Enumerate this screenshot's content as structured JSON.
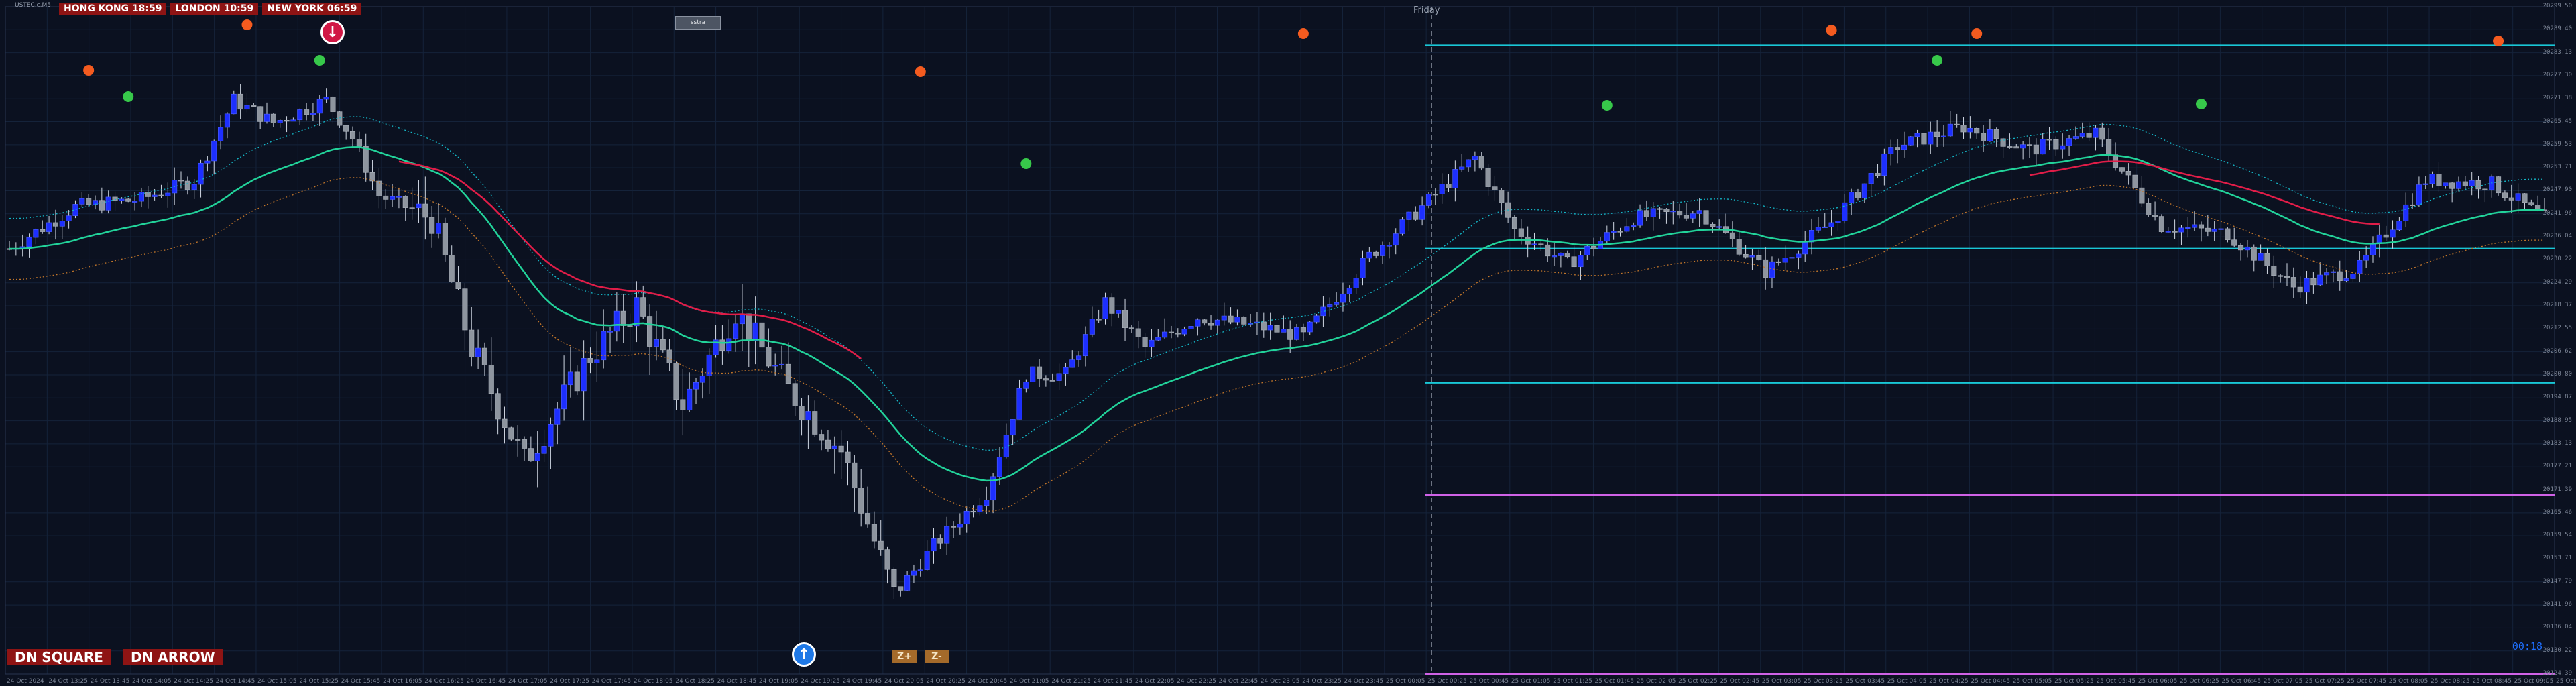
{
  "window": {
    "symbol_title": "USTEC,c,M5"
  },
  "sessions": [
    {
      "label": "HONG KONG 18:59"
    },
    {
      "label": "LONDON  10:59"
    },
    {
      "label": "NEW YORK  06:59"
    }
  ],
  "session_button": "sstra",
  "day_label": "Friday",
  "buttons": {
    "dn_square": "DN SQUARE",
    "dn_arrow": "DN ARROW",
    "zoom_in": "Z+",
    "zoom_out": "Z-"
  },
  "countdown": "00:18",
  "colors": {
    "background": "#0b1120",
    "grid": "#15233a",
    "bull_candle": "#1d2fff",
    "bear_candle": "#8e959f",
    "ma_fast": "#e11d48",
    "ma_mid": "#22d39a",
    "band_upper": "#14b8c8",
    "band_lower": "#c2762a",
    "level_cyan": "#19c7d6",
    "level_magenta": "#d062e6",
    "dot_top": "#f45b1f",
    "dot_bottom": "#37c84a",
    "session_red": "#8e1414"
  },
  "price_axis": [
    "20299.50",
    "20289.40",
    "20283.13",
    "20277.30",
    "20271.38",
    "20265.45",
    "20259.53",
    "20253.71",
    "20247.90",
    "20241.96",
    "20236.04",
    "20230.22",
    "20224.29",
    "20218.37",
    "20212.55",
    "20206.62",
    "20200.80",
    "20194.87",
    "20188.95",
    "20183.13",
    "20177.21",
    "20171.39",
    "20165.46",
    "20159.54",
    "20153.71",
    "20147.79",
    "20141.96",
    "20136.04",
    "20130.22",
    "20124.39"
  ],
  "time_axis": [
    "24 Oct 2024",
    "24 Oct 13:25",
    "24 Oct 13:45",
    "24 Oct 14:05",
    "24 Oct 14:25",
    "24 Oct 14:45",
    "24 Oct 15:05",
    "24 Oct 15:25",
    "24 Oct 15:45",
    "24 Oct 16:05",
    "24 Oct 16:25",
    "24 Oct 16:45",
    "24 Oct 17:05",
    "24 Oct 17:25",
    "24 Oct 17:45",
    "24 Oct 18:05",
    "24 Oct 18:25",
    "24 Oct 18:45",
    "24 Oct 19:05",
    "24 Oct 19:25",
    "24 Oct 19:45",
    "24 Oct 20:05",
    "24 Oct 20:25",
    "24 Oct 20:45",
    "24 Oct 21:05",
    "24 Oct 21:25",
    "24 Oct 21:45",
    "24 Oct 22:05",
    "24 Oct 22:25",
    "24 Oct 22:45",
    "24 Oct 23:05",
    "24 Oct 23:25",
    "24 Oct 23:45",
    "25 Oct 00:05",
    "25 Oct 00:25",
    "25 Oct 00:45",
    "25 Oct 01:05",
    "25 Oct 01:25",
    "25 Oct 01:45",
    "25 Oct 02:05",
    "25 Oct 02:25",
    "25 Oct 02:45",
    "25 Oct 03:05",
    "25 Oct 03:25",
    "25 Oct 03:45",
    "25 Oct 04:05",
    "25 Oct 04:25",
    "25 Oct 04:45",
    "25 Oct 05:05",
    "25 Oct 05:25",
    "25 Oct 05:45",
    "25 Oct 06:05",
    "25 Oct 06:25",
    "25 Oct 06:45",
    "25 Oct 07:05",
    "25 Oct 07:25",
    "25 Oct 07:45",
    "25 Oct 08:05",
    "25 Oct 08:25",
    "25 Oct 08:45",
    "25 Oct 09:05",
    "25 Oct 09:25"
  ],
  "levels": [
    {
      "price": 20289.4,
      "color": "cyan"
    },
    {
      "price": 20236.04,
      "color": "cyan"
    },
    {
      "price": 20200.8,
      "color": "cyan"
    },
    {
      "price": 20171.39,
      "color": "magenta"
    },
    {
      "price": 20124.39,
      "color": "magenta"
    }
  ]
}
